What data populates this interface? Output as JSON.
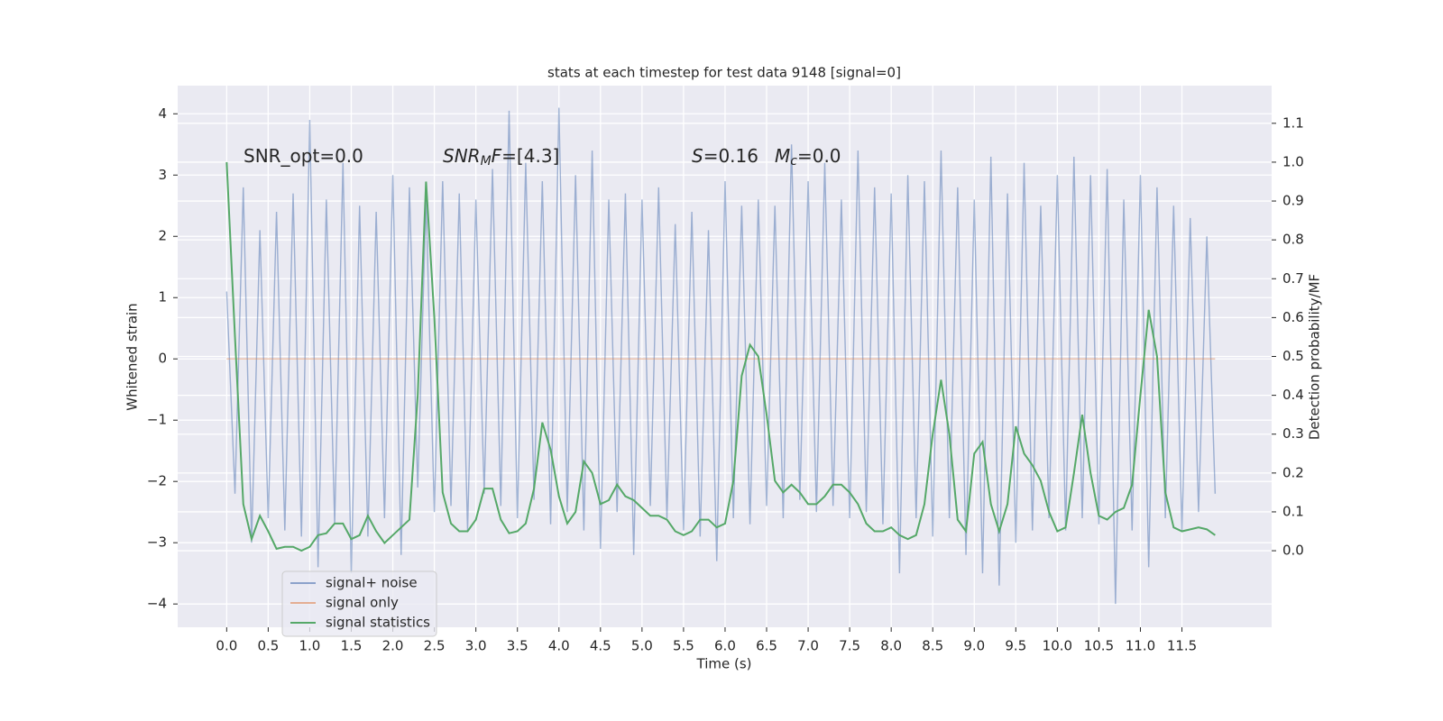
{
  "chart_data": {
    "type": "line",
    "title": "stats at each timestep for test data 9148 [signal=0]",
    "xlabel": "Time (s)",
    "ylabel": "Whitened strain",
    "y2label": "Detection probability/MF",
    "x": [
      0,
      0.1,
      0.2,
      0.3,
      0.4,
      0.5,
      0.6,
      0.7,
      0.8,
      0.9,
      1,
      1.1,
      1.2,
      1.3,
      1.4,
      1.5,
      1.6,
      1.7,
      1.8,
      1.9,
      2,
      2.1,
      2.2,
      2.3,
      2.4,
      2.5,
      2.6,
      2.7,
      2.8,
      2.9,
      3,
      3.1,
      3.2,
      3.3,
      3.4,
      3.5,
      3.6,
      3.7,
      3.8,
      3.9,
      4,
      4.1,
      4.2,
      4.3,
      4.4,
      4.5,
      4.6,
      4.7,
      4.8,
      4.9,
      5,
      5.1,
      5.2,
      5.3,
      5.4,
      5.5,
      5.6,
      5.7,
      5.8,
      5.9,
      6,
      6.1,
      6.2,
      6.3,
      6.4,
      6.5,
      6.6,
      6.7,
      6.8,
      6.9,
      7,
      7.1,
      7.2,
      7.3,
      7.4,
      7.5,
      7.6,
      7.7,
      7.8,
      7.9,
      8,
      8.1,
      8.2,
      8.3,
      8.4,
      8.5,
      8.6,
      8.7,
      8.8,
      8.9,
      9,
      9.1,
      9.2,
      9.3,
      9.4,
      9.5,
      9.6,
      9.7,
      9.8,
      9.9,
      10,
      10.1,
      10.2,
      10.3,
      10.4,
      10.5,
      10.6,
      10.7,
      10.8,
      10.9,
      11,
      11.1,
      11.2,
      11.3,
      11.4,
      11.5,
      11.6,
      11.7,
      11.8,
      11.9
    ],
    "series": [
      {
        "name": "signal+ noise",
        "color": "#4c72b0",
        "axis": "y",
        "values": [
          1.1,
          -2.2,
          2.8,
          -3.0,
          2.1,
          -2.6,
          2.4,
          -2.8,
          2.7,
          -2.9,
          3.9,
          -3.4,
          2.6,
          -2.7,
          3.2,
          -3.5,
          2.5,
          -2.9,
          2.4,
          -2.6,
          3.0,
          -3.2,
          2.8,
          -2.1,
          2.6,
          -2.5,
          2.9,
          -2.4,
          2.7,
          -2.8,
          2.6,
          -2.2,
          3.1,
          -2.4,
          4.05,
          -2.6,
          3.2,
          -2.3,
          2.9,
          -2.7,
          4.1,
          -2.5,
          3.0,
          -2.8,
          3.4,
          -3.1,
          2.6,
          -2.5,
          2.7,
          -3.2,
          2.6,
          -2.4,
          2.8,
          -2.6,
          2.2,
          -2.8,
          2.4,
          -2.9,
          2.1,
          -3.3,
          2.9,
          -2.6,
          2.5,
          -2.7,
          2.6,
          -2.4,
          2.5,
          -2.6,
          3.5,
          -2.3,
          2.9,
          -2.5,
          3.2,
          -2.4,
          2.6,
          -2.6,
          3.4,
          -2.5,
          2.8,
          -2.7,
          2.7,
          -3.5,
          3.0,
          -2.6,
          2.9,
          -2.9,
          3.4,
          -2.6,
          2.8,
          -3.2,
          2.6,
          -3.5,
          3.3,
          -3.7,
          2.7,
          -3.0,
          3.2,
          -2.8,
          2.5,
          -2.6,
          3.0,
          -2.8,
          3.3,
          -2.6,
          3.0,
          -2.7,
          3.1,
          -4.0,
          2.6,
          -2.8,
          3.0,
          -3.4,
          2.8,
          -2.6,
          2.5,
          -2.8,
          2.3,
          -2.5,
          2.0,
          -2.2
        ]
      },
      {
        "name": "signal only",
        "color": "#dd8452",
        "axis": "y",
        "values": [
          0,
          0,
          0,
          0,
          0,
          0,
          0,
          0,
          0,
          0,
          0,
          0,
          0,
          0,
          0,
          0,
          0,
          0,
          0,
          0,
          0,
          0,
          0,
          0,
          0,
          0,
          0,
          0,
          0,
          0,
          0,
          0,
          0,
          0,
          0,
          0,
          0,
          0,
          0,
          0,
          0,
          0,
          0,
          0,
          0,
          0,
          0,
          0,
          0,
          0,
          0,
          0,
          0,
          0,
          0,
          0,
          0,
          0,
          0,
          0,
          0,
          0,
          0,
          0,
          0,
          0,
          0,
          0,
          0,
          0,
          0,
          0,
          0,
          0,
          0,
          0,
          0,
          0,
          0,
          0,
          0,
          0,
          0,
          0,
          0,
          0,
          0,
          0,
          0,
          0,
          0,
          0,
          0,
          0,
          0,
          0,
          0,
          0,
          0,
          0,
          0,
          0,
          0,
          0,
          0,
          0,
          0,
          0,
          0,
          0,
          0,
          0,
          0,
          0,
          0,
          0,
          0,
          0,
          0,
          0
        ]
      },
      {
        "name": "signal statistics",
        "color": "#55a868",
        "axis": "y2",
        "values": [
          1.0,
          0.55,
          0.12,
          0.03,
          0.09,
          0.05,
          0.005,
          0.01,
          0.01,
          0.0,
          0.01,
          0.04,
          0.045,
          0.07,
          0.07,
          0.03,
          0.04,
          0.09,
          0.05,
          0.02,
          0.04,
          0.06,
          0.08,
          0.4,
          0.95,
          0.6,
          0.15,
          0.07,
          0.05,
          0.05,
          0.08,
          0.16,
          0.16,
          0.08,
          0.045,
          0.05,
          0.07,
          0.16,
          0.33,
          0.26,
          0.14,
          0.07,
          0.1,
          0.23,
          0.2,
          0.12,
          0.13,
          0.17,
          0.14,
          0.13,
          0.11,
          0.09,
          0.09,
          0.08,
          0.05,
          0.04,
          0.05,
          0.08,
          0.08,
          0.06,
          0.07,
          0.18,
          0.45,
          0.53,
          0.5,
          0.35,
          0.18,
          0.15,
          0.17,
          0.15,
          0.12,
          0.12,
          0.14,
          0.17,
          0.17,
          0.15,
          0.12,
          0.07,
          0.05,
          0.05,
          0.06,
          0.04,
          0.03,
          0.04,
          0.12,
          0.3,
          0.44,
          0.3,
          0.08,
          0.05,
          0.25,
          0.28,
          0.12,
          0.05,
          0.12,
          0.32,
          0.25,
          0.22,
          0.18,
          0.1,
          0.05,
          0.06,
          0.2,
          0.35,
          0.2,
          0.09,
          0.08,
          0.1,
          0.11,
          0.17,
          0.4,
          0.62,
          0.5,
          0.15,
          0.06,
          0.05,
          0.055,
          0.06,
          0.055,
          0.04
        ]
      }
    ],
    "annotations": [
      {
        "parts": [
          {
            "text": "SNR_opt=0.0"
          }
        ]
      },
      {
        "parts": [
          {
            "text": "SNR",
            "italic": true
          },
          {
            "text": "M",
            "italic": true,
            "sub": true
          },
          {
            "text": "F",
            "italic": true
          },
          {
            "text": "=[4.3]"
          }
        ]
      },
      {
        "parts": [
          {
            "text": "S",
            "italic": true
          },
          {
            "text": "=0.16"
          }
        ]
      },
      {
        "parts": [
          {
            "text": "M",
            "italic": true
          },
          {
            "text": "c",
            "italic": true,
            "sub": true
          },
          {
            "text": "=0.0"
          }
        ]
      }
    ],
    "xlim": [
      -0.59,
      12.58
    ],
    "ylim": [
      -4.38,
      4.46
    ],
    "y2lim": [
      -0.197,
      1.197
    ],
    "xticks": [
      {
        "value": 0,
        "label": "0.0"
      },
      0.5,
      {
        "value": 1,
        "label": "1.0"
      },
      1.5,
      {
        "value": 2,
        "label": "2.0"
      },
      2.5,
      {
        "value": 3,
        "label": "3.0"
      },
      3.5,
      {
        "value": 4,
        "label": "4.0"
      },
      4.5,
      {
        "value": 5,
        "label": "5.0"
      },
      5.5,
      {
        "value": 6,
        "label": "6.0"
      },
      6.5,
      {
        "value": 7,
        "label": "7.0"
      },
      7.5,
      {
        "value": 8,
        "label": "8.0"
      },
      8.5,
      {
        "value": 9,
        "label": "9.0"
      },
      9.5,
      {
        "value": 10,
        "label": "10.0"
      },
      10.5,
      {
        "value": 11,
        "label": "11.0"
      },
      11.5
    ],
    "yticks": [
      {
        "value": -4,
        "label": "−4"
      },
      {
        "value": -3,
        "label": "−3"
      },
      {
        "value": -2,
        "label": "−2"
      },
      {
        "value": -1,
        "label": "−1"
      },
      0,
      1,
      2,
      3,
      4
    ],
    "y2ticks": [
      {
        "value": 0,
        "label": "0.0"
      },
      0.1,
      0.2,
      0.3,
      0.4,
      0.5,
      0.6,
      0.7,
      0.8,
      0.9,
      {
        "value": 1,
        "label": "1.0"
      },
      1.1
    ],
    "grid": true,
    "legend": "lower left"
  }
}
